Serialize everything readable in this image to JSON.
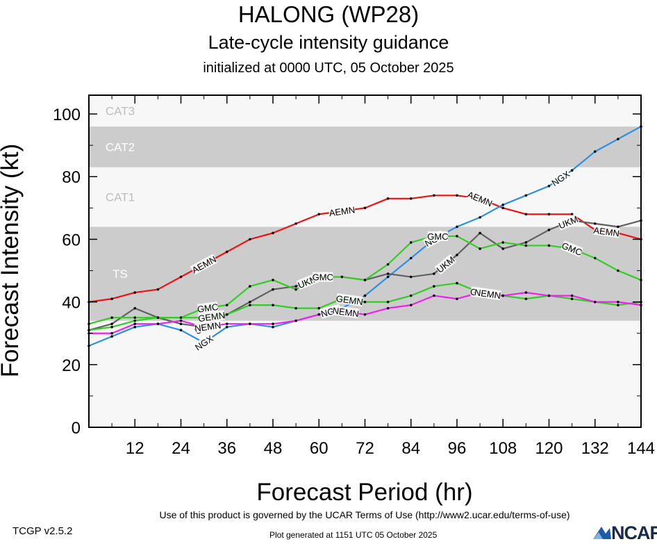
{
  "header": {
    "title": "HALONG (WP28)",
    "subtitle": "Late-cycle intensity guidance",
    "init": "initialized at 0000 UTC, 05 October 2025"
  },
  "footer": {
    "terms": "Use of this product is governed by the UCAR Terms of Use (http://www2.ucar.edu/terms-of-use)",
    "version": "TCGP v2.5.2",
    "generated": "Plot generated at 1151 UTC   05 October 2025",
    "logo": "NCAR"
  },
  "chart_data": {
    "type": "line",
    "xlabel": "Forecast Period (hr)",
    "ylabel": "Forecast Intensity (kt)",
    "xlim": [
      0,
      144
    ],
    "ylim": [
      0,
      106
    ],
    "xticks": [
      12,
      24,
      36,
      48,
      60,
      72,
      84,
      96,
      108,
      120,
      132,
      144
    ],
    "yticks": [
      0,
      20,
      40,
      60,
      80,
      100
    ],
    "bands": [
      {
        "label": "TS",
        "from": 34,
        "to": 64,
        "shade": "#cccccc"
      },
      {
        "label": "CAT1",
        "from": 64,
        "to": 83,
        "shade": "#f7f7f7"
      },
      {
        "label": "CAT2",
        "from": 83,
        "to": 96,
        "shade": "#cccccc"
      },
      {
        "label": "CAT3",
        "from": 96,
        "to": 106,
        "shade": "#f7f7f7"
      }
    ],
    "series": [
      {
        "name": "AEMN",
        "color": "#ee1111",
        "x": [
          0,
          6,
          12,
          18,
          24,
          30,
          36,
          42,
          48,
          54,
          60,
          66,
          72,
          78,
          84,
          90,
          96,
          102,
          108,
          114,
          120,
          126,
          132,
          138,
          144
        ],
        "y": [
          40,
          41,
          43,
          44,
          48,
          52,
          56,
          60,
          62,
          65,
          68,
          69,
          70,
          73,
          73,
          74,
          74,
          73,
          70,
          68,
          68,
          68,
          63,
          62,
          60
        ],
        "labels_at": [
          30,
          66,
          102,
          135
        ]
      },
      {
        "name": "NGX",
        "color": "#2d8ee6",
        "x": [
          0,
          6,
          12,
          18,
          24,
          30,
          36,
          42,
          48,
          54,
          60,
          66,
          72,
          78,
          84,
          90,
          96,
          102,
          108,
          114,
          120,
          126,
          132,
          138,
          144
        ],
        "y": [
          26,
          29,
          32,
          33,
          31,
          27,
          32,
          33,
          32,
          34,
          36,
          38,
          42,
          48,
          54,
          60,
          64,
          67,
          71,
          74,
          77,
          82,
          88,
          92,
          96
        ],
        "labels_at": [
          30,
          63,
          90,
          123
        ]
      },
      {
        "name": "UKM",
        "color": "#606060",
        "x": [
          0,
          6,
          12,
          18,
          24,
          30,
          36,
          42,
          48,
          54,
          60,
          66,
          72,
          78,
          84,
          90,
          96,
          102,
          108,
          114,
          120,
          126,
          132,
          138,
          144
        ],
        "y": [
          31,
          33,
          38,
          35,
          33,
          32,
          36,
          40,
          44,
          45,
          48,
          48,
          47,
          49,
          48,
          49,
          55,
          62,
          57,
          59,
          63,
          66,
          65,
          64,
          66
        ],
        "labels_at": [
          30,
          57,
          93,
          125
        ]
      },
      {
        "name": "GMC",
        "color": "#33cc22",
        "x": [
          0,
          6,
          12,
          18,
          24,
          30,
          36,
          42,
          48,
          54,
          60,
          66,
          72,
          78,
          84,
          90,
          96,
          102,
          108,
          114,
          120,
          126,
          132,
          138,
          144
        ],
        "y": [
          33,
          35,
          35,
          35,
          35,
          38,
          39,
          45,
          47,
          44,
          48,
          48,
          47,
          52,
          59,
          61,
          61,
          57,
          59,
          58,
          58,
          57,
          54,
          50,
          47
        ],
        "labels_at": [
          31,
          61,
          91,
          126
        ]
      },
      {
        "name": "GEMN",
        "color": "#33cc22",
        "x": [
          0,
          6,
          12,
          18,
          24,
          30,
          36,
          42,
          48,
          54,
          60,
          66,
          72,
          78,
          84,
          90,
          96,
          102,
          108,
          114,
          120,
          126,
          132,
          138,
          144
        ],
        "y": [
          31,
          32,
          34,
          35,
          35,
          35,
          36,
          39,
          39,
          38,
          38,
          41,
          40,
          40,
          42,
          45,
          46,
          43,
          42,
          41,
          42,
          41,
          40,
          39,
          40
        ],
        "labels_at": [
          32,
          68,
          103
        ]
      },
      {
        "name": "NEMN",
        "color": "#ee22ee",
        "x": [
          0,
          6,
          12,
          18,
          24,
          30,
          36,
          42,
          48,
          54,
          60,
          66,
          72,
          78,
          84,
          90,
          96,
          102,
          108,
          114,
          120,
          126,
          132,
          138,
          144
        ],
        "y": [
          30,
          30,
          33,
          33,
          34,
          32,
          33,
          33,
          33,
          34,
          36,
          37,
          36,
          38,
          39,
          42,
          41,
          43,
          42,
          43,
          42,
          42,
          40,
          40,
          39
        ],
        "labels_at": [
          31,
          67,
          104
        ]
      }
    ]
  }
}
